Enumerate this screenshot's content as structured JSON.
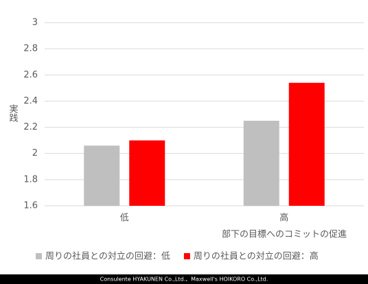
{
  "chart_data": {
    "type": "bar",
    "categories": [
      "低",
      "高"
    ],
    "series": [
      {
        "name": "周りの社員との対立の回避：低",
        "color": "#bfbfbf",
        "values": [
          2.06,
          2.25
        ]
      },
      {
        "name": "周りの社員との対立の回避：高",
        "color": "#ff0000",
        "values": [
          2.1,
          2.54
        ]
      }
    ],
    "ylim": [
      1.6,
      3
    ],
    "yticks": [
      1.6,
      1.8,
      2,
      2.2,
      2.4,
      2.6,
      2.8,
      3
    ],
    "grid": true,
    "x_label": "部下の目標へのコミットの促進",
    "y_label": "実践",
    "legend": "bottom"
  },
  "footer": "Consulente HYAKUNEN Co.,Ltd.、Maxwell's HOIKORO Co.,Ltd."
}
